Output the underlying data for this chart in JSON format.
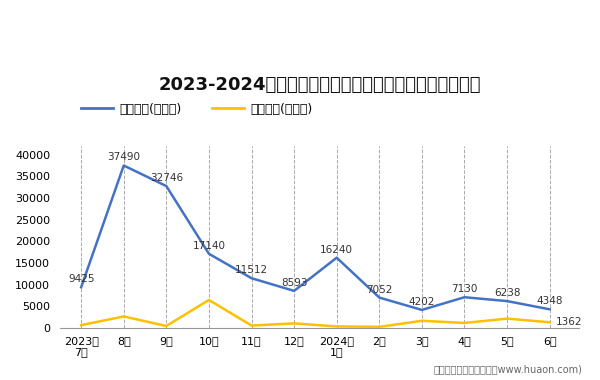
{
  "title": "2023-2024年西藏自治区商品收发货人所在地进、出口额",
  "categories": [
    "2023年\n7月",
    "8月",
    "9月",
    "10月",
    "11月",
    "12月",
    "2024年\n1月",
    "2月",
    "3月",
    "4月",
    "5月",
    "6月"
  ],
  "export_values": [
    9425,
    37490,
    32746,
    17140,
    11512,
    8593,
    16240,
    7052,
    4202,
    7130,
    6238,
    4348
  ],
  "import_values": [
    700,
    2700,
    500,
    6500,
    600,
    1100,
    400,
    300,
    1700,
    1200,
    2200,
    1362
  ],
  "export_label": "出口总额(万美元)",
  "import_label": "进口总额(万美元)",
  "export_color": "#4472C4",
  "import_color": "#FFC000",
  "ylim": [
    0,
    42000
  ],
  "yticks": [
    0,
    5000,
    10000,
    15000,
    20000,
    25000,
    30000,
    35000,
    40000
  ],
  "footer": "制图：华经产业研究院（www.huaon.com)",
  "background_color": "#FFFFFF",
  "plot_bg_color": "#FFFFFF",
  "title_fontsize": 13,
  "legend_fontsize": 9,
  "annot_fontsize": 7.5,
  "tick_fontsize": 8,
  "footer_fontsize": 7
}
